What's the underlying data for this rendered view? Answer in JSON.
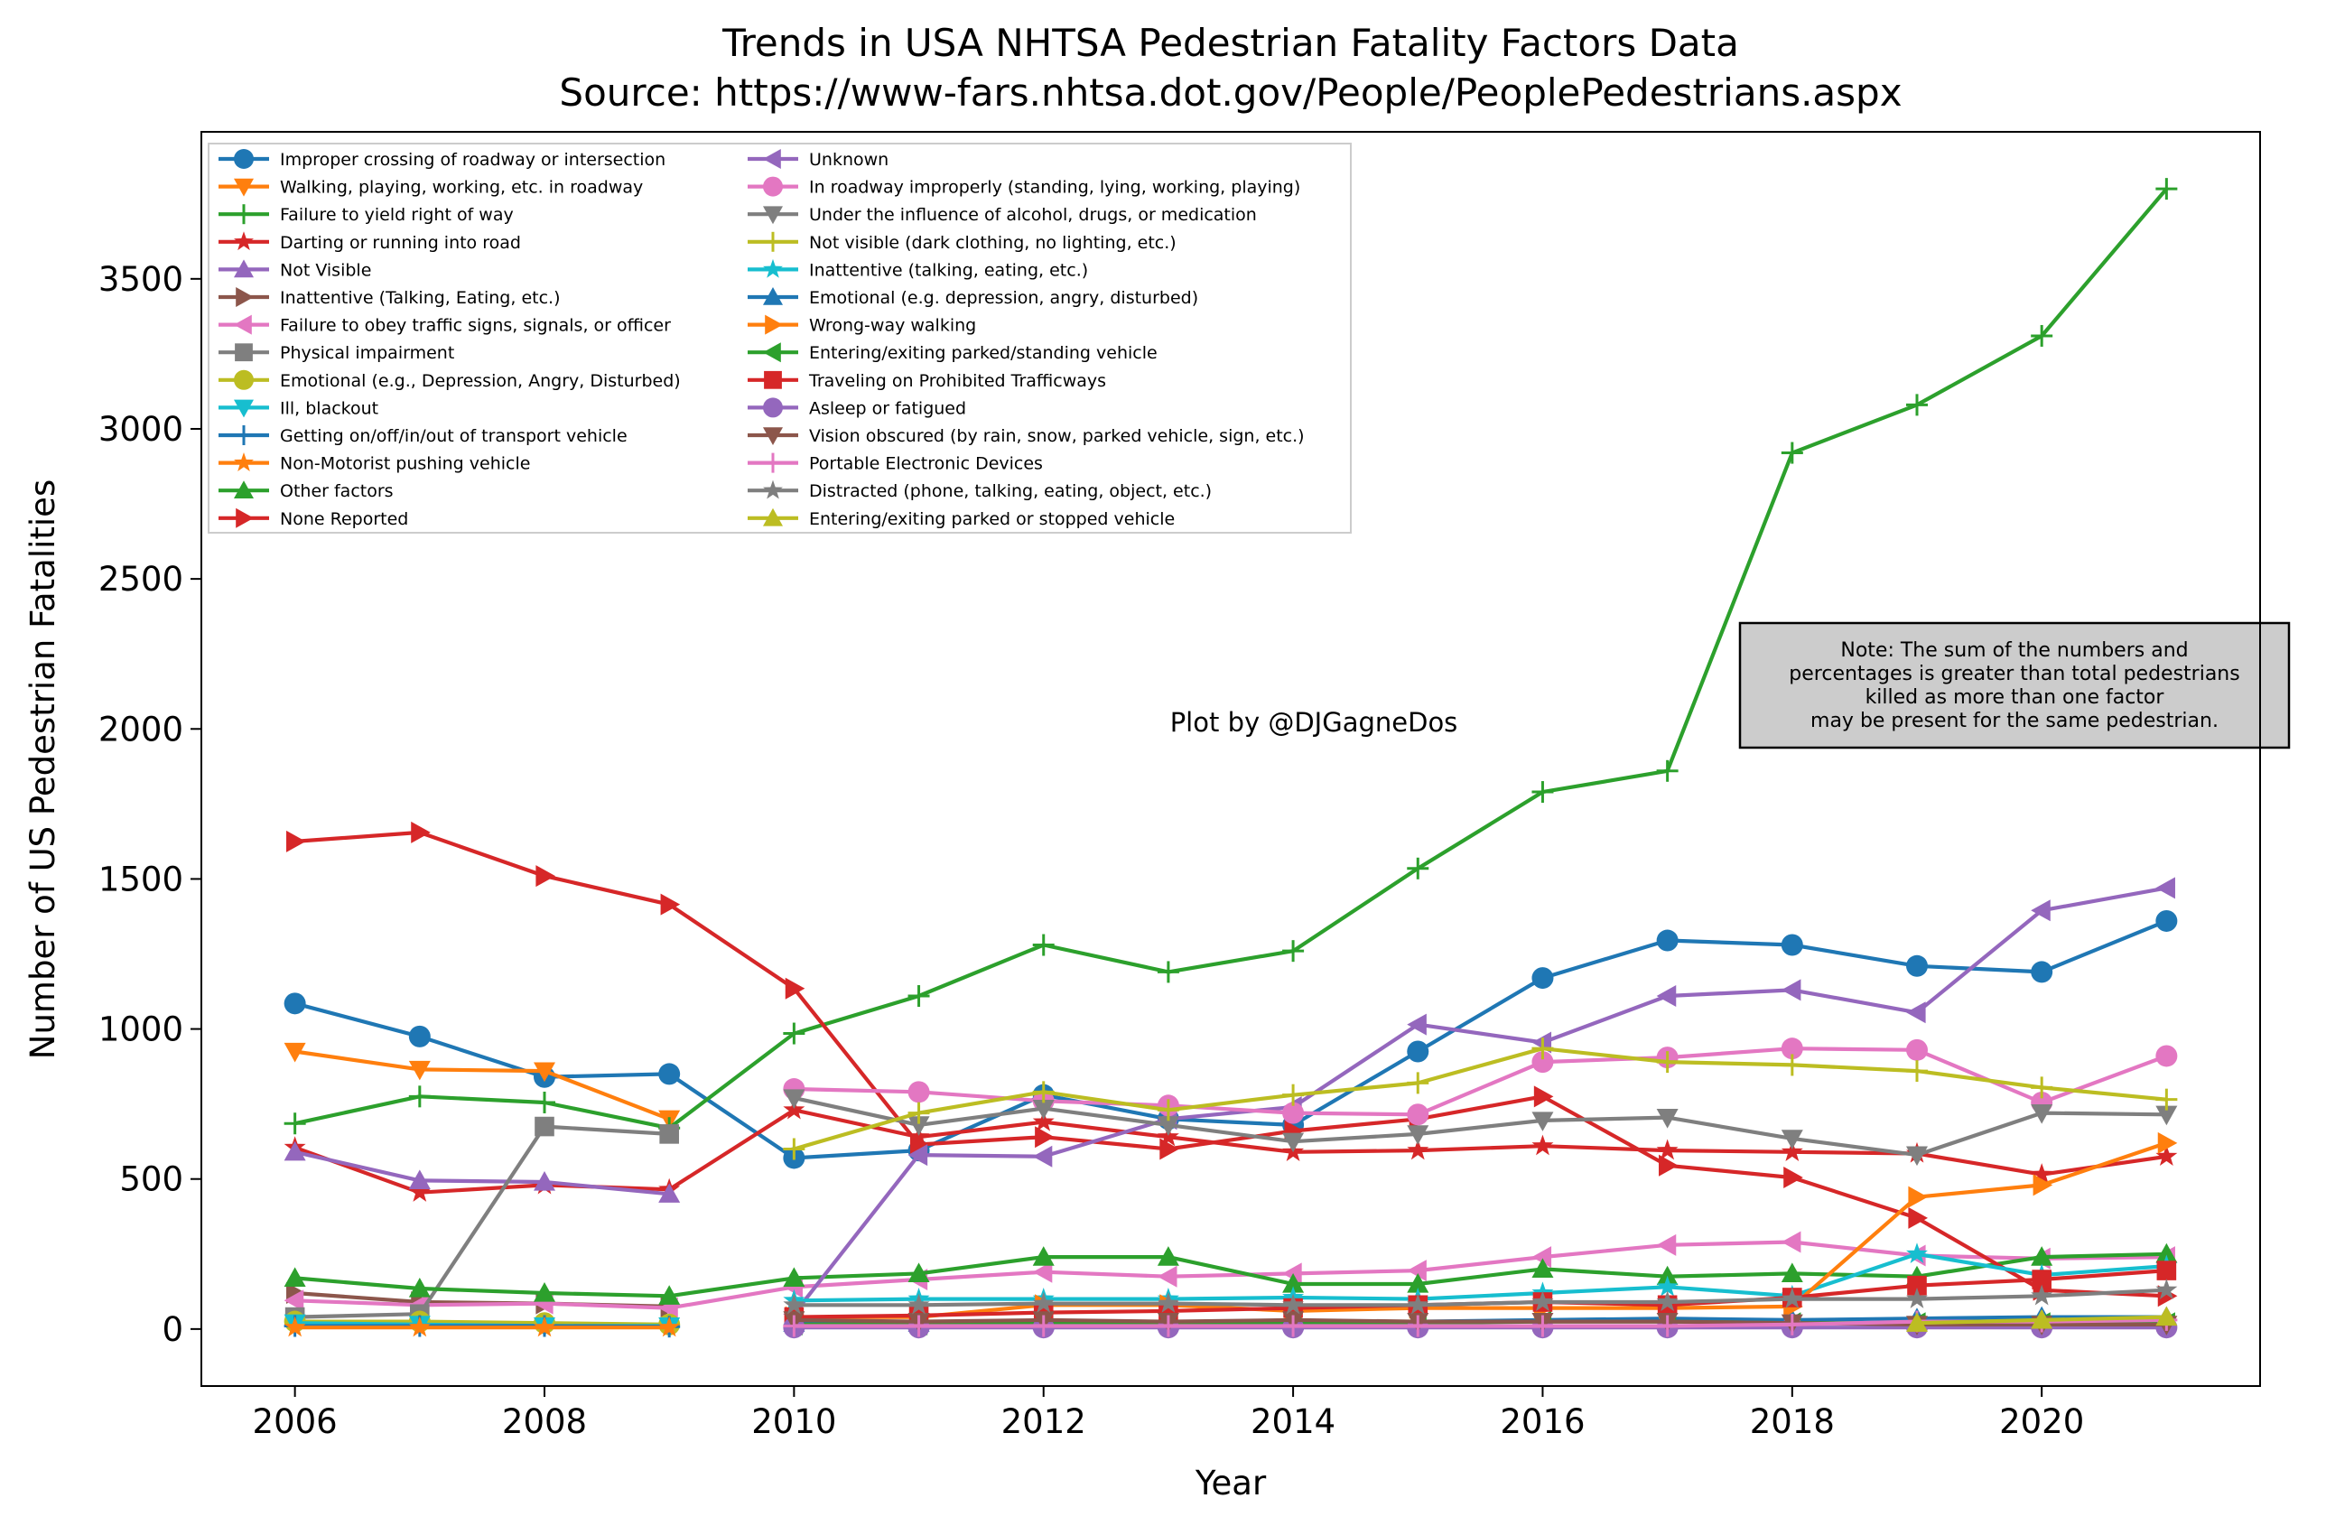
{
  "chart_data": {
    "type": "line",
    "title": "Trends in USA NHTSA Pedestrian Fatality Factors Data",
    "subtitle": "Source: https://www-fars.nhtsa.dot.gov/People/PeoplePedestrians.aspx",
    "xlabel": "Year",
    "ylabel": "Number of US Pedestrian Fatalities",
    "xlim": [
      2005.25,
      2021.75
    ],
    "ylim": [
      -190,
      3990
    ],
    "x_ticks": [
      2006,
      2008,
      2010,
      2012,
      2014,
      2016,
      2018,
      2020
    ],
    "y_ticks": [
      0,
      500,
      1000,
      1500,
      2000,
      2500,
      3000,
      3500
    ],
    "grid": false,
    "legend_position": "top-left",
    "annotation_credit": "Plot by @DJGagneDos",
    "annotation_note": [
      "Note: The sum of the numbers and",
      "percentages is greater than total pedestrians",
      "killed as more than one factor",
      "may be present for the same pedestrian."
    ],
    "series": [
      {
        "name": "Improper crossing of roadway or intersection",
        "color": "#1f77b4",
        "marker": "circle",
        "x": [
          2006,
          2007,
          2008,
          2009,
          2010,
          2011,
          2012,
          2013,
          2014,
          2015,
          2016,
          2017,
          2018,
          2019,
          2020,
          2021
        ],
        "y": [
          1085,
          975,
          840,
          850,
          570,
          595,
          780,
          700,
          680,
          925,
          1170,
          1295,
          1280,
          1210,
          1190,
          1360
        ]
      },
      {
        "name": "Walking, playing, working, etc. in roadway",
        "color": "#ff7f0e",
        "marker": "triangle-down",
        "x": [
          2006,
          2007,
          2008,
          2009
        ],
        "y": [
          925,
          865,
          860,
          700
        ]
      },
      {
        "name": "Failure to yield right of way",
        "color": "#2ca02c",
        "marker": "plus",
        "x": [
          2006,
          2007,
          2008,
          2009,
          2010,
          2011,
          2012,
          2013,
          2014,
          2015,
          2016,
          2017,
          2018,
          2019,
          2020,
          2021
        ],
        "y": [
          685,
          775,
          755,
          670,
          985,
          1110,
          1280,
          1190,
          1260,
          1535,
          1790,
          1860,
          2920,
          3080,
          3310,
          3800
        ]
      },
      {
        "name": "Darting or running into road",
        "color": "#d62728",
        "marker": "star",
        "x": [
          2006,
          2007,
          2008,
          2009,
          2010,
          2011,
          2012,
          2013,
          2014,
          2015,
          2016,
          2017,
          2018,
          2019,
          2020,
          2021
        ],
        "y": [
          605,
          455,
          480,
          465,
          730,
          640,
          690,
          640,
          590,
          595,
          610,
          595,
          590,
          585,
          515,
          575
        ]
      },
      {
        "name": "Not Visible",
        "color": "#9467bd",
        "marker": "triangle-up",
        "x": [
          2006,
          2007,
          2008,
          2009
        ],
        "y": [
          590,
          495,
          490,
          450
        ]
      },
      {
        "name": "Inattentive (Talking, Eating, etc.)",
        "color": "#8c564b",
        "marker": "triangle-right",
        "x": [
          2006,
          2007,
          2008,
          2009
        ],
        "y": [
          120,
          90,
          85,
          75
        ]
      },
      {
        "name": "Failure to obey traffic signs, signals, or officer",
        "color": "#e377c2",
        "marker": "triangle-left",
        "x": [
          2006,
          2007,
          2008,
          2009,
          2010,
          2011,
          2012,
          2013,
          2014,
          2015,
          2016,
          2017,
          2018,
          2019,
          2020,
          2021
        ],
        "y": [
          95,
          80,
          85,
          70,
          140,
          165,
          190,
          175,
          185,
          195,
          240,
          280,
          290,
          245,
          235,
          240
        ]
      },
      {
        "name": "Physical impairment",
        "color": "#7f7f7f",
        "marker": "square",
        "x": [
          2006,
          2007,
          2008,
          2009
        ],
        "y": [
          40,
          50,
          675,
          650
        ]
      },
      {
        "name": "Emotional (e.g., Depression, Angry, Disturbed)",
        "color": "#bcbd22",
        "marker": "circle",
        "x": [
          2006,
          2007,
          2008,
          2009
        ],
        "y": [
          25,
          25,
          20,
          15
        ]
      },
      {
        "name": "Ill, blackout",
        "color": "#17becf",
        "marker": "triangle-down",
        "x": [
          2006,
          2007,
          2008,
          2009
        ],
        "y": [
          20,
          15,
          10,
          10
        ]
      },
      {
        "name": "Getting on/off/in/out of transport vehicle",
        "color": "#1f77b4",
        "marker": "plus",
        "x": [
          2006,
          2007,
          2008,
          2009
        ],
        "y": [
          10,
          10,
          10,
          8
        ]
      },
      {
        "name": "Non-Motorist pushing  vehicle",
        "color": "#ff7f0e",
        "marker": "star",
        "x": [
          2006,
          2007,
          2008,
          2009
        ],
        "y": [
          5,
          5,
          5,
          5
        ]
      },
      {
        "name": "Other factors",
        "color": "#2ca02c",
        "marker": "triangle-up",
        "x": [
          2006,
          2007,
          2008,
          2009,
          2010,
          2011,
          2012,
          2013,
          2014,
          2015,
          2016,
          2017,
          2018,
          2019,
          2020,
          2021
        ],
        "y": [
          170,
          135,
          120,
          110,
          170,
          185,
          240,
          240,
          150,
          150,
          200,
          175,
          185,
          175,
          240,
          250
        ]
      },
      {
        "name": "None Reported",
        "color": "#d62728",
        "marker": "triangle-right",
        "x": [
          2006,
          2007,
          2008,
          2009,
          2010,
          2011,
          2012,
          2013,
          2014,
          2015,
          2016,
          2017,
          2018,
          2019,
          2020,
          2021
        ],
        "y": [
          1625,
          1655,
          1510,
          1415,
          1135,
          615,
          640,
          600,
          660,
          700,
          775,
          545,
          505,
          370,
          130,
          110
        ]
      },
      {
        "name": "Unknown",
        "color": "#9467bd",
        "marker": "triangle-left",
        "x": [
          2010,
          2011,
          2012,
          2013,
          2014,
          2015,
          2016,
          2017,
          2018,
          2019,
          2020,
          2021
        ],
        "y": [
          50,
          580,
          575,
          700,
          740,
          1015,
          955,
          1110,
          1130,
          1055,
          1395,
          1470
        ]
      },
      {
        "name": "In roadway improperly (standing, lying, working, playing)",
        "color": "#e377c2",
        "marker": "circle",
        "x": [
          2010,
          2011,
          2012,
          2013,
          2014,
          2015,
          2016,
          2017,
          2018,
          2019,
          2020,
          2021
        ],
        "y": [
          800,
          790,
          760,
          745,
          720,
          715,
          890,
          905,
          935,
          930,
          755,
          910
        ]
      },
      {
        "name": "Under the influence of alcohol, drugs, or medication",
        "color": "#7f7f7f",
        "marker": "triangle-down",
        "x": [
          2010,
          2011,
          2012,
          2013,
          2014,
          2015,
          2016,
          2017,
          2018,
          2019,
          2020,
          2021
        ],
        "y": [
          770,
          680,
          735,
          680,
          625,
          650,
          695,
          705,
          635,
          580,
          720,
          715
        ]
      },
      {
        "name": "Not visible (dark clothing, no lighting, etc.)",
        "color": "#bcbd22",
        "marker": "plus",
        "x": [
          2010,
          2011,
          2012,
          2013,
          2014,
          2015,
          2016,
          2017,
          2018,
          2019,
          2020,
          2021
        ],
        "y": [
          600,
          720,
          790,
          730,
          780,
          820,
          935,
          890,
          880,
          860,
          805,
          765
        ]
      },
      {
        "name": "Inattentive (talking, eating, etc.)",
        "color": "#17becf",
        "marker": "star",
        "x": [
          2010,
          2011,
          2012,
          2013,
          2014,
          2015,
          2016,
          2017,
          2018,
          2019,
          2020,
          2021
        ],
        "y": [
          95,
          100,
          100,
          100,
          105,
          100,
          120,
          140,
          110,
          250,
          180,
          210
        ]
      },
      {
        "name": "Emotional (e.g. depression, angry, disturbed)",
        "color": "#1f77b4",
        "marker": "triangle-up",
        "x": [
          2010,
          2011,
          2012,
          2013,
          2014,
          2015,
          2016,
          2017,
          2018,
          2019,
          2020,
          2021
        ],
        "y": [
          20,
          20,
          25,
          25,
          25,
          25,
          30,
          35,
          30,
          35,
          40,
          40
        ]
      },
      {
        "name": "Wrong-way walking",
        "color": "#ff7f0e",
        "marker": "triangle-right",
        "x": [
          2010,
          2011,
          2012,
          2013,
          2014,
          2015,
          2016,
          2017,
          2018,
          2019,
          2020,
          2021
        ],
        "y": [
          40,
          40,
          80,
          80,
          60,
          70,
          70,
          70,
          75,
          440,
          480,
          620
        ]
      },
      {
        "name": "Entering/exiting parked/standing vehicle",
        "color": "#2ca02c",
        "marker": "triangle-left",
        "x": [
          2010,
          2011,
          2012,
          2013,
          2014,
          2015,
          2016,
          2017,
          2018,
          2019,
          2020,
          2021
        ],
        "y": [
          15,
          15,
          20,
          20,
          20,
          20,
          25,
          25,
          20,
          20,
          20,
          20
        ]
      },
      {
        "name": "Traveling on Prohibited Trafficways",
        "color": "#d62728",
        "marker": "square",
        "x": [
          2010,
          2011,
          2012,
          2013,
          2014,
          2015,
          2016,
          2017,
          2018,
          2019,
          2020,
          2021
        ],
        "y": [
          40,
          45,
          55,
          60,
          70,
          80,
          90,
          80,
          105,
          145,
          165,
          195
        ]
      },
      {
        "name": "Asleep or fatigued",
        "color": "#9467bd",
        "marker": "circle",
        "x": [
          2010,
          2011,
          2012,
          2013,
          2014,
          2015,
          2016,
          2017,
          2018,
          2019,
          2020,
          2021
        ],
        "y": [
          5,
          5,
          5,
          5,
          5,
          5,
          5,
          5,
          5,
          5,
          5,
          5
        ]
      },
      {
        "name": "Vision obscured (by rain, snow, parked vehicle, sign, etc.)",
        "color": "#8c564b",
        "marker": "triangle-down",
        "x": [
          2010,
          2011,
          2012,
          2013,
          2014,
          2015,
          2016,
          2017,
          2018,
          2019,
          2020,
          2021
        ],
        "y": [
          30,
          25,
          30,
          25,
          30,
          25,
          25,
          25,
          20,
          15,
          15,
          15
        ]
      },
      {
        "name": "Portable Electronic Devices",
        "color": "#e377c2",
        "marker": "plus",
        "x": [
          2010,
          2011,
          2012,
          2013,
          2014,
          2015,
          2016,
          2017,
          2018,
          2019,
          2020,
          2021
        ],
        "y": [
          10,
          10,
          10,
          10,
          10,
          10,
          10,
          10,
          15,
          25,
          25,
          30
        ]
      },
      {
        "name": "Distracted (phone, talking, eating, object, etc.)",
        "color": "#7f7f7f",
        "marker": "star",
        "x": [
          2010,
          2011,
          2012,
          2013,
          2014,
          2015,
          2016,
          2017,
          2018,
          2019,
          2020,
          2021
        ],
        "y": [
          80,
          80,
          85,
          85,
          80,
          80,
          90,
          90,
          100,
          100,
          110,
          130
        ]
      },
      {
        "name": "Entering/exiting parked or stopped vehicle",
        "color": "#bcbd22",
        "marker": "triangle-up",
        "x": [
          2019,
          2020,
          2021
        ],
        "y": [
          20,
          30,
          40
        ]
      }
    ]
  }
}
